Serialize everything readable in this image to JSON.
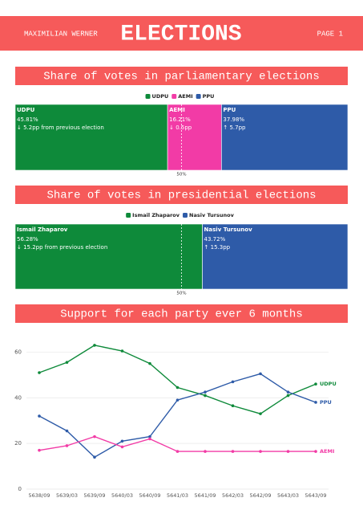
{
  "header": {
    "author": "MAXIMILIAN WERNER",
    "title": "ELECTIONS",
    "page": "PAGE 1"
  },
  "chart_data": [
    {
      "type": "stacked-bar",
      "title": "Share of votes in parliamentary elections",
      "xlim": [
        0,
        100
      ],
      "legend": "top",
      "reference_line": {
        "value": 50,
        "label": "50%"
      },
      "series": [
        {
          "name": "UDPU",
          "color": "#0e8a3a",
          "values": [
            45.81
          ],
          "value_labels": [
            "45.81%"
          ],
          "change": "↓ 5.2pp from previous election"
        },
        {
          "name": "AEMI",
          "color": "#f23ba6",
          "values": [
            16.21
          ],
          "value_labels": [
            "16.21%"
          ],
          "change": "↓ 0.5pp"
        },
        {
          "name": "PPU",
          "color": "#2e5ba8",
          "values": [
            37.98
          ],
          "value_labels": [
            "37.98%"
          ],
          "change": "↑ 5.7pp"
        }
      ]
    },
    {
      "type": "stacked-bar",
      "title": "Share of votes in presidential elections",
      "xlim": [
        0,
        100
      ],
      "legend": "top",
      "reference_line": {
        "value": 50,
        "label": "50%"
      },
      "series": [
        {
          "name": "Ismail Zhaparov",
          "color": "#0e8a3a",
          "values": [
            56.28
          ],
          "value_labels": [
            "56.28%"
          ],
          "change": "↓ 15.2pp from previous election"
        },
        {
          "name": "Nasiv Tursunov",
          "color": "#2e5ba8",
          "values": [
            43.72
          ],
          "value_labels": [
            "43.72%"
          ],
          "change": "↑ 15.3pp"
        }
      ]
    },
    {
      "type": "line",
      "title": "Support for each party ever 6 months",
      "categories": [
        "5638/09",
        "5639/03",
        "5639/09",
        "5640/03",
        "5640/09",
        "5641/03",
        "5641/09",
        "5642/03",
        "5642/09",
        "5643/03",
        "5643/09"
      ],
      "ylim": [
        0,
        70
      ],
      "yticks": [
        0,
        20,
        40,
        60
      ],
      "grid": true,
      "series": [
        {
          "name": "UDPU",
          "color": "#0e8a3a",
          "values": [
            51,
            55.5,
            63,
            60.5,
            55,
            44.5,
            41,
            36.5,
            33,
            41,
            46
          ]
        },
        {
          "name": "PPU",
          "color": "#2e5ba8",
          "values": [
            32,
            25.5,
            14,
            21,
            23,
            39,
            42.5,
            47,
            50.5,
            42.5,
            38
          ]
        },
        {
          "name": "AEMI",
          "color": "#f23ba6",
          "values": [
            17,
            19,
            23,
            18.5,
            22,
            16.5,
            16.5,
            16.5,
            16.5,
            16.5,
            16.5
          ]
        }
      ]
    }
  ]
}
